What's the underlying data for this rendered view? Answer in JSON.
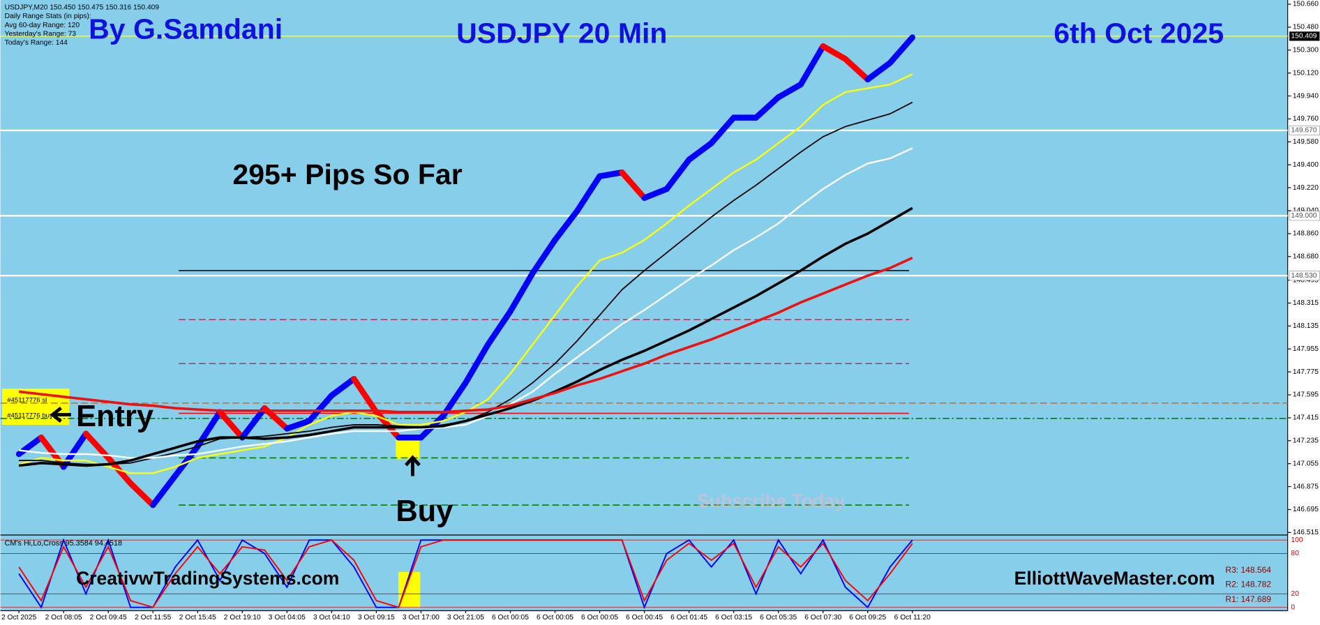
{
  "chart_data": [
    {
      "type": "line",
      "title": "USDJPY 20 Min",
      "author": "By G.Samdani",
      "date": "6th Oct 2025",
      "info": [
        "USDJPY,M20  150.450 150.475 150.316 150.409",
        "Daily Range Stats (in pips):",
        "Avg 60-day Range: 120",
        "Yesterday's Range: 73",
        "Today's Range: 144"
      ],
      "categories": [
        "2 Oct 2025",
        null,
        "2 Oct 08:05",
        null,
        "2 Oct 09:45",
        null,
        "2 Oct 11:55",
        null,
        "2 Oct 15:45",
        null,
        "2 Oct 19:10",
        null,
        "3 Oct 04:05",
        null,
        "3 Oct 04:10",
        null,
        "3 Oct 09:15",
        null,
        "3 Oct 17:00",
        null,
        "3 Oct 21:05",
        null,
        "6 Oct 00:05",
        null,
        "6 Oct 00:05",
        null,
        "6 Oct 00:05",
        null,
        "6 Oct 00:45",
        null,
        "6 Oct 01:45",
        null,
        "6 Oct 03:15",
        null,
        "6 Oct 05:35",
        null,
        "6 Oct 07:30",
        null,
        "6 Oct 09:25",
        null,
        "6 Oct 11:20"
      ],
      "price": {
        "up_color": "#0000ff",
        "down_color": "#ff0000",
        "values": [
          147.13,
          147.26,
          147.03,
          147.29,
          147.1,
          146.9,
          146.73,
          146.96,
          147.19,
          147.46,
          147.26,
          147.49,
          147.33,
          147.39,
          147.59,
          147.72,
          147.46,
          147.26,
          147.26,
          147.43,
          147.69,
          147.99,
          148.25,
          148.55,
          148.81,
          149.04,
          149.31,
          149.34,
          149.14,
          149.21,
          149.44,
          149.57,
          149.77,
          149.77,
          149.93,
          150.03,
          150.33,
          150.23,
          150.07,
          150.2,
          150.4
        ]
      },
      "series": [
        {
          "color": "#ffff00",
          "width": 2,
          "values": [
            147.05,
            147.1,
            147.08,
            147.08,
            147.03,
            146.98,
            146.98,
            147.03,
            147.1,
            147.13,
            147.16,
            147.19,
            147.26,
            147.36,
            147.43,
            147.46,
            147.43,
            147.36,
            147.36,
            147.39,
            147.46,
            147.56,
            147.76,
            147.99,
            148.22,
            148.45,
            148.65,
            148.71,
            148.81,
            148.94,
            149.08,
            149.21,
            149.34,
            149.44,
            149.57,
            149.7,
            149.87,
            149.97,
            150.0,
            150.03,
            150.11
          ]
        },
        {
          "color": "#000000",
          "width": 1.5,
          "values": [
            147.08,
            147.08,
            147.06,
            147.05,
            147.05,
            147.06,
            147.1,
            147.14,
            147.19,
            147.25,
            147.26,
            147.27,
            147.29,
            147.31,
            147.34,
            147.36,
            147.36,
            147.35,
            147.34,
            147.36,
            147.39,
            147.46,
            147.56,
            147.69,
            147.84,
            148.02,
            148.22,
            148.42,
            148.57,
            148.71,
            148.85,
            148.99,
            149.12,
            149.24,
            149.37,
            149.5,
            149.62,
            149.7,
            149.75,
            149.8,
            149.89
          ]
        },
        {
          "color": "#ffffff",
          "width": 2,
          "values": [
            147.16,
            147.14,
            147.13,
            147.13,
            147.12,
            147.1,
            147.1,
            147.12,
            147.13,
            147.16,
            147.19,
            147.21,
            147.23,
            147.26,
            147.29,
            147.31,
            147.31,
            147.31,
            147.33,
            147.34,
            147.36,
            147.43,
            147.52,
            147.62,
            147.76,
            147.89,
            148.02,
            148.15,
            148.26,
            148.38,
            148.5,
            148.61,
            148.73,
            148.83,
            148.94,
            149.08,
            149.21,
            149.32,
            149.41,
            149.45,
            149.53
          ]
        },
        {
          "color": "#000000",
          "width": 3,
          "values": [
            147.04,
            147.06,
            147.05,
            147.04,
            147.05,
            147.08,
            147.13,
            147.18,
            147.23,
            147.26,
            147.26,
            147.25,
            147.26,
            147.28,
            147.31,
            147.34,
            147.34,
            147.34,
            147.34,
            147.35,
            147.39,
            147.44,
            147.49,
            147.55,
            147.62,
            147.7,
            147.79,
            147.87,
            147.94,
            148.02,
            148.1,
            148.19,
            148.28,
            148.37,
            148.47,
            148.57,
            148.68,
            148.78,
            148.86,
            148.96,
            149.06
          ]
        },
        {
          "color": "#ee1111",
          "width": 3,
          "values": [
            147.62,
            147.6,
            147.58,
            147.56,
            147.54,
            147.52,
            147.51,
            147.49,
            147.48,
            147.47,
            147.47,
            147.47,
            147.47,
            147.47,
            147.47,
            147.47,
            147.47,
            147.46,
            147.46,
            147.46,
            147.47,
            147.48,
            147.51,
            147.56,
            147.61,
            147.67,
            147.72,
            147.78,
            147.84,
            147.91,
            147.97,
            148.03,
            148.1,
            148.17,
            148.24,
            148.32,
            148.39,
            148.46,
            148.53,
            148.59,
            148.67
          ]
        }
      ],
      "levels": [
        {
          "value": 150.409,
          "color": "#ffff00",
          "style": "solid",
          "span": "full",
          "label": "150.409"
        },
        {
          "value": 149.67,
          "color": "#ffffff",
          "style": "solid",
          "span": "full",
          "label": "149.670"
        },
        {
          "value": 149.0,
          "color": "#ffffff",
          "style": "solid",
          "span": "full",
          "label": "149.000"
        },
        {
          "value": 148.53,
          "color": "#ffffff",
          "style": "solid",
          "span": "full",
          "label": "148.530"
        },
        {
          "value": 148.57,
          "color": "#000000",
          "style": "solid",
          "span": "partial"
        },
        {
          "value": 148.185,
          "color": "#b03060",
          "style": "dashed",
          "span": "partial"
        },
        {
          "value": 147.84,
          "color": "#b03060",
          "style": "dashed",
          "span": "partial"
        },
        {
          "value": 147.53,
          "color": "#d2691e",
          "style": "dashed",
          "span": "full"
        },
        {
          "value": 147.45,
          "color": "#ff0000",
          "style": "solid",
          "span": "partial"
        },
        {
          "value": 147.41,
          "color": "#008000",
          "style": "dashdot",
          "span": "full"
        },
        {
          "value": 147.1,
          "color": "#008000",
          "style": "dashed",
          "span": "partial"
        },
        {
          "value": 146.73,
          "color": "#008000",
          "style": "dashed",
          "span": "partial"
        }
      ],
      "ylim": [
        146.515,
        150.66
      ],
      "yticks": [
        {
          "value": 150.66,
          "label": "150.660"
        },
        {
          "value": 150.48,
          "label": "150.480"
        },
        {
          "value": 150.3,
          "label": "150.300"
        },
        {
          "value": 150.12,
          "label": "150.120"
        },
        {
          "value": 149.94,
          "label": "149.940"
        },
        {
          "value": 149.76,
          "label": "149.760"
        },
        {
          "value": 149.58,
          "label": "149.580"
        },
        {
          "value": 149.4,
          "label": "149.400"
        },
        {
          "value": 149.22,
          "label": "149.220"
        },
        {
          "value": 149.04,
          "label": "149.040"
        },
        {
          "value": 148.86,
          "label": "148.860"
        },
        {
          "value": 148.68,
          "label": "148.680"
        },
        {
          "value": 148.495,
          "label": "148.495"
        },
        {
          "value": 148.315,
          "label": "148.315"
        },
        {
          "value": 148.135,
          "label": "148.135"
        },
        {
          "value": 147.955,
          "label": "147.955"
        },
        {
          "value": 147.775,
          "label": "147.775"
        },
        {
          "value": 147.595,
          "label": "147.595"
        },
        {
          "value": 147.415,
          "label": "147.415"
        },
        {
          "value": 147.235,
          "label": "147.235"
        },
        {
          "value": 147.055,
          "label": "147.055"
        },
        {
          "value": 146.875,
          "label": "146.875"
        },
        {
          "value": 146.695,
          "label": "146.695"
        },
        {
          "value": 146.515,
          "label": "146.515"
        }
      ],
      "annotations": [
        "295+ Pips So Far",
        "Entry",
        "Buy",
        "CreativwTradingSystems.com",
        "ElliottWaveMaster.com",
        "Subscribe Today",
        "#45117776 sl",
        "#45117776 buy",
        "R3: 148.564",
        "R2: 148.782",
        "R1: 147.689"
      ]
    },
    {
      "type": "line",
      "title": "CM's Hi,Lo,Cross 95.3584 94.4518",
      "series": [
        {
          "color": "#0000ff",
          "values": [
            50,
            0,
            100,
            20,
            100,
            0,
            0,
            60,
            100,
            40,
            100,
            80,
            30,
            100,
            100,
            60,
            0,
            0,
            100,
            100,
            100,
            100,
            100,
            100,
            100,
            100,
            100,
            100,
            0,
            80,
            100,
            60,
            100,
            20,
            100,
            50,
            100,
            30,
            0,
            60,
            100
          ]
        },
        {
          "color": "#ff0000",
          "values": [
            60,
            10,
            90,
            30,
            90,
            10,
            0,
            50,
            90,
            50,
            90,
            85,
            40,
            90,
            100,
            70,
            10,
            0,
            90,
            100,
            100,
            100,
            100,
            100,
            100,
            100,
            100,
            100,
            10,
            70,
            95,
            70,
            95,
            30,
            90,
            60,
            95,
            40,
            10,
            50,
            95
          ]
        }
      ],
      "ylim": [
        0,
        100
      ],
      "yticks": [
        0,
        20,
        80,
        100
      ]
    }
  ]
}
